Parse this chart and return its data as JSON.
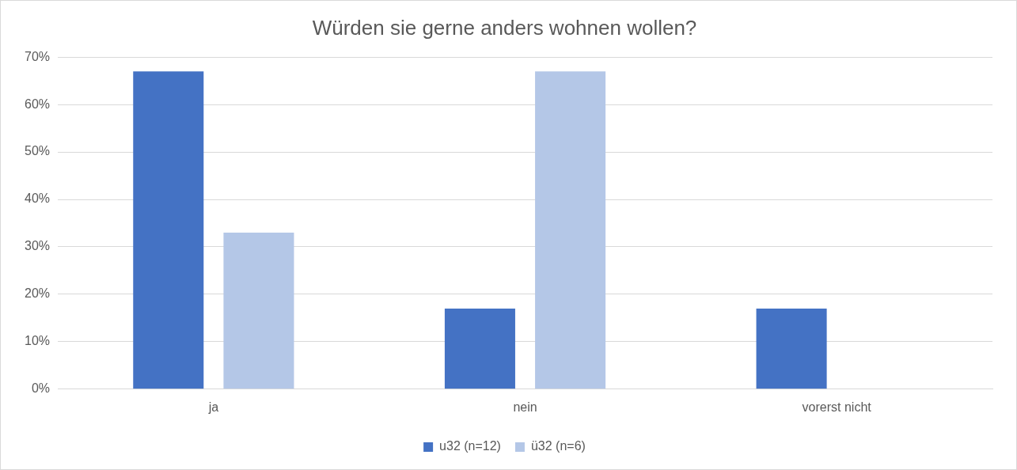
{
  "chart_data": {
    "type": "bar",
    "title": "Würden sie gerne anders wohnen wollen?",
    "categories": [
      "ja",
      "nein",
      "vorerst nicht"
    ],
    "series": [
      {
        "name": "u32 (n=12)",
        "color": "#4472c4",
        "values": [
          67,
          17,
          17
        ]
      },
      {
        "name": "ü32 (n=6)",
        "color": "#b4c7e7",
        "values": [
          33,
          67,
          0
        ]
      }
    ],
    "ylim": [
      0,
      70
    ],
    "yticks": [
      {
        "value": 0,
        "label": "0%"
      },
      {
        "value": 10,
        "label": "10%"
      },
      {
        "value": 20,
        "label": "20%"
      },
      {
        "value": 30,
        "label": "30%"
      },
      {
        "value": 40,
        "label": "40%"
      },
      {
        "value": 50,
        "label": "50%"
      },
      {
        "value": 60,
        "label": "60%"
      },
      {
        "value": 70,
        "label": "70%"
      }
    ],
    "grid": "y",
    "legend": "bottom"
  }
}
